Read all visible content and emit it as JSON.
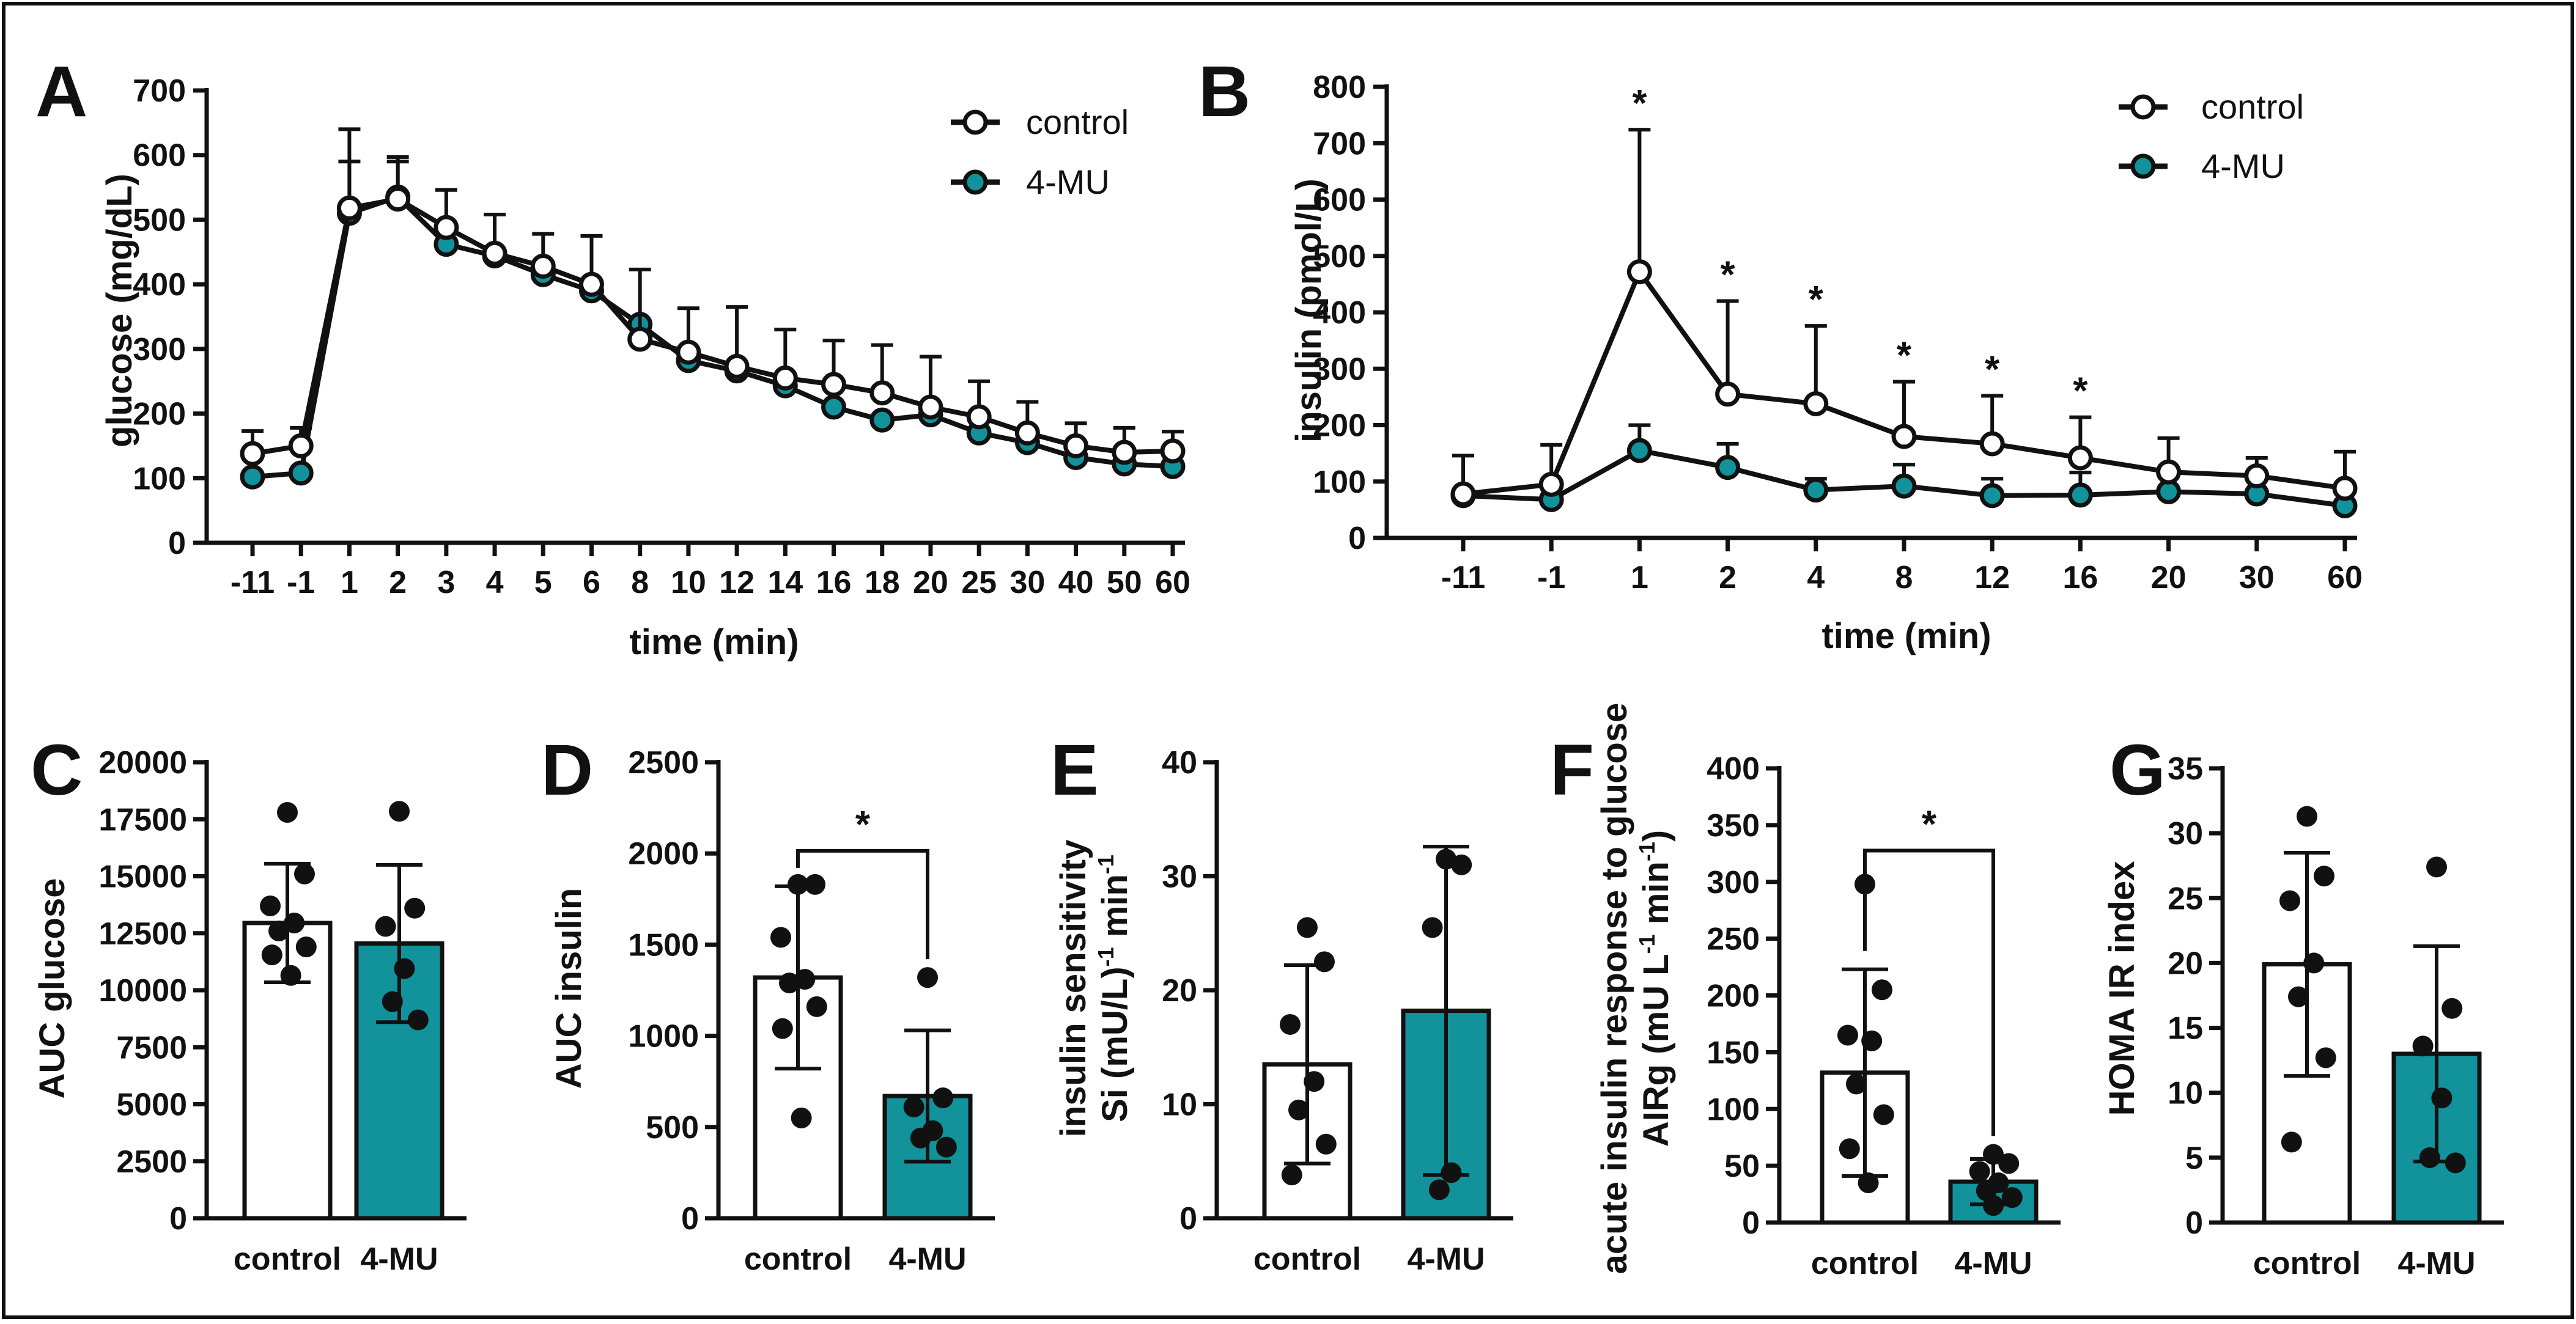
{
  "colors": {
    "control": "#ffffff",
    "treatment": "#12929a",
    "stroke": "#111111"
  },
  "chart_data": [
    {
      "type": "line",
      "panel": "A",
      "xlabel": "time (min)",
      "ylabel": "glucose (mg/dL)",
      "ylim": [
        0,
        700
      ],
      "yticks": [
        0,
        100,
        200,
        300,
        400,
        500,
        600,
        700
      ],
      "categories": [
        "-11",
        "-1",
        "1",
        "2",
        "3",
        "4",
        "5",
        "6",
        "8",
        "10",
        "12",
        "14",
        "16",
        "18",
        "20",
        "25",
        "30",
        "40",
        "50",
        "60"
      ],
      "series": [
        {
          "name": "control",
          "values": [
            138,
            150,
            518,
            532,
            488,
            448,
            428,
            400,
            315,
            295,
            273,
            255,
            245,
            232,
            210,
            195,
            170,
            150,
            140,
            142
          ],
          "err": [
            35,
            28,
            122,
            65,
            58,
            60,
            50,
            75,
            108,
            68,
            92,
            75,
            68,
            74,
            78,
            55,
            48,
            35,
            38,
            30
          ]
        },
        {
          "name": "4-MU",
          "values": [
            102,
            108,
            510,
            535,
            462,
            444,
            415,
            390,
            338,
            282,
            266,
            243,
            210,
            190,
            198,
            170,
            155,
            132,
            122,
            118
          ],
          "err": [
            0,
            0,
            80,
            55,
            0,
            0,
            0,
            0,
            0,
            0,
            0,
            0,
            0,
            0,
            0,
            0,
            0,
            0,
            0,
            0
          ]
        }
      ],
      "legend": [
        "control",
        "4-MU"
      ]
    },
    {
      "type": "line",
      "panel": "B",
      "xlabel": "time (min)",
      "ylabel": "insulin (pmol/L)",
      "ylim": [
        0,
        800
      ],
      "yticks": [
        0,
        100,
        200,
        300,
        400,
        500,
        600,
        700,
        800
      ],
      "categories": [
        "-11",
        "-1",
        "1",
        "2",
        "4",
        "8",
        "12",
        "16",
        "20",
        "30",
        "60"
      ],
      "series": [
        {
          "name": "control",
          "values": [
            78,
            95,
            472,
            255,
            238,
            180,
            167,
            142,
            117,
            110,
            88
          ],
          "err": [
            68,
            70,
            252,
            165,
            138,
            97,
            85,
            72,
            60,
            32,
            65
          ]
        },
        {
          "name": "4-MU",
          "values": [
            75,
            68,
            155,
            125,
            85,
            92,
            75,
            76,
            82,
            78,
            57
          ],
          "err": [
            0,
            0,
            45,
            42,
            20,
            38,
            30,
            40,
            0,
            0,
            0
          ]
        }
      ],
      "significant": [
        "1",
        "2",
        "4",
        "8",
        "12",
        "16"
      ],
      "sig_label": "*",
      "legend": [
        "control",
        "4-MU"
      ]
    },
    {
      "type": "bar",
      "panel": "C",
      "ylabel": "AUC glucose",
      "ylim": [
        0,
        20000
      ],
      "yticks": [
        0,
        2500,
        5000,
        7500,
        10000,
        12500,
        15000,
        17500,
        20000
      ],
      "categories": [
        "control",
        "4-MU"
      ],
      "values": [
        12950,
        12050
      ],
      "err": [
        2600,
        3450
      ],
      "points": [
        [
          17800,
          15100,
          13700,
          12950,
          12600,
          11900,
          11550,
          10650
        ],
        [
          17850,
          13600,
          12800,
          10950,
          9500,
          8700
        ]
      ]
    },
    {
      "type": "bar",
      "panel": "D",
      "ylabel": "AUC insulin",
      "ylim": [
        0,
        2500
      ],
      "yticks": [
        0,
        500,
        1000,
        1500,
        2000,
        2500
      ],
      "categories": [
        "control",
        "4-MU"
      ],
      "values": [
        1320,
        670
      ],
      "err": [
        500,
        360
      ],
      "points": [
        [
          1830,
          1830,
          1540,
          1310,
          1290,
          1160,
          1040,
          550
        ],
        [
          1320,
          660,
          610,
          480,
          440,
          390
        ]
      ],
      "significance": "*"
    },
    {
      "type": "bar",
      "panel": "E",
      "ylabel_line1": "insulin sensitivity",
      "ylabel_line2": "Si (mU/L)",
      "ylabel_sup1": "-1",
      "ylabel_tail": " min",
      "ylabel_sup2": "-1",
      "ylim": [
        0,
        40
      ],
      "yticks": [
        0,
        10,
        20,
        30,
        40
      ],
      "categories": [
        "control",
        "4-MU"
      ],
      "values": [
        13.5,
        18.2
      ],
      "err": [
        8.7,
        14.4
      ],
      "points": [
        [
          25.5,
          22.5,
          17.0,
          12.0,
          9.5,
          6.5,
          3.8
        ],
        [
          31.5,
          31.0,
          25.5,
          4.0,
          2.5
        ]
      ]
    },
    {
      "type": "bar",
      "panel": "F",
      "ylabel_line1": "acute insulin response to glucose",
      "ylabel_line2": "AIRg (mU L",
      "ylabel_sup1": "-1",
      "ylabel_tail": " min",
      "ylabel_sup2": "-1",
      "ylabel_close": ")",
      "ylim": [
        0,
        400
      ],
      "yticks": [
        0,
        50,
        100,
        150,
        200,
        250,
        300,
        350,
        400
      ],
      "categories": [
        "control",
        "4-MU"
      ],
      "values": [
        132,
        36
      ],
      "err": [
        91,
        20
      ],
      "points": [
        [
          298,
          205,
          165,
          160,
          122,
          95,
          65,
          35
        ],
        [
          60,
          52,
          45,
          35,
          28,
          22,
          15
        ]
      ],
      "significance": "*"
    },
    {
      "type": "bar",
      "panel": "G",
      "ylabel": "HOMA IR index",
      "ylim": [
        0,
        35
      ],
      "yticks": [
        0,
        5,
        10,
        15,
        20,
        25,
        30,
        35
      ],
      "categories": [
        "control",
        "4-MU"
      ],
      "values": [
        19.9,
        13.0
      ],
      "err": [
        8.6,
        8.3
      ],
      "points": [
        [
          31.3,
          26.7,
          24.8,
          20.0,
          17.4,
          12.7,
          6.2
        ],
        [
          27.4,
          16.5,
          13.6,
          9.6,
          5.0,
          4.6
        ]
      ]
    }
  ]
}
